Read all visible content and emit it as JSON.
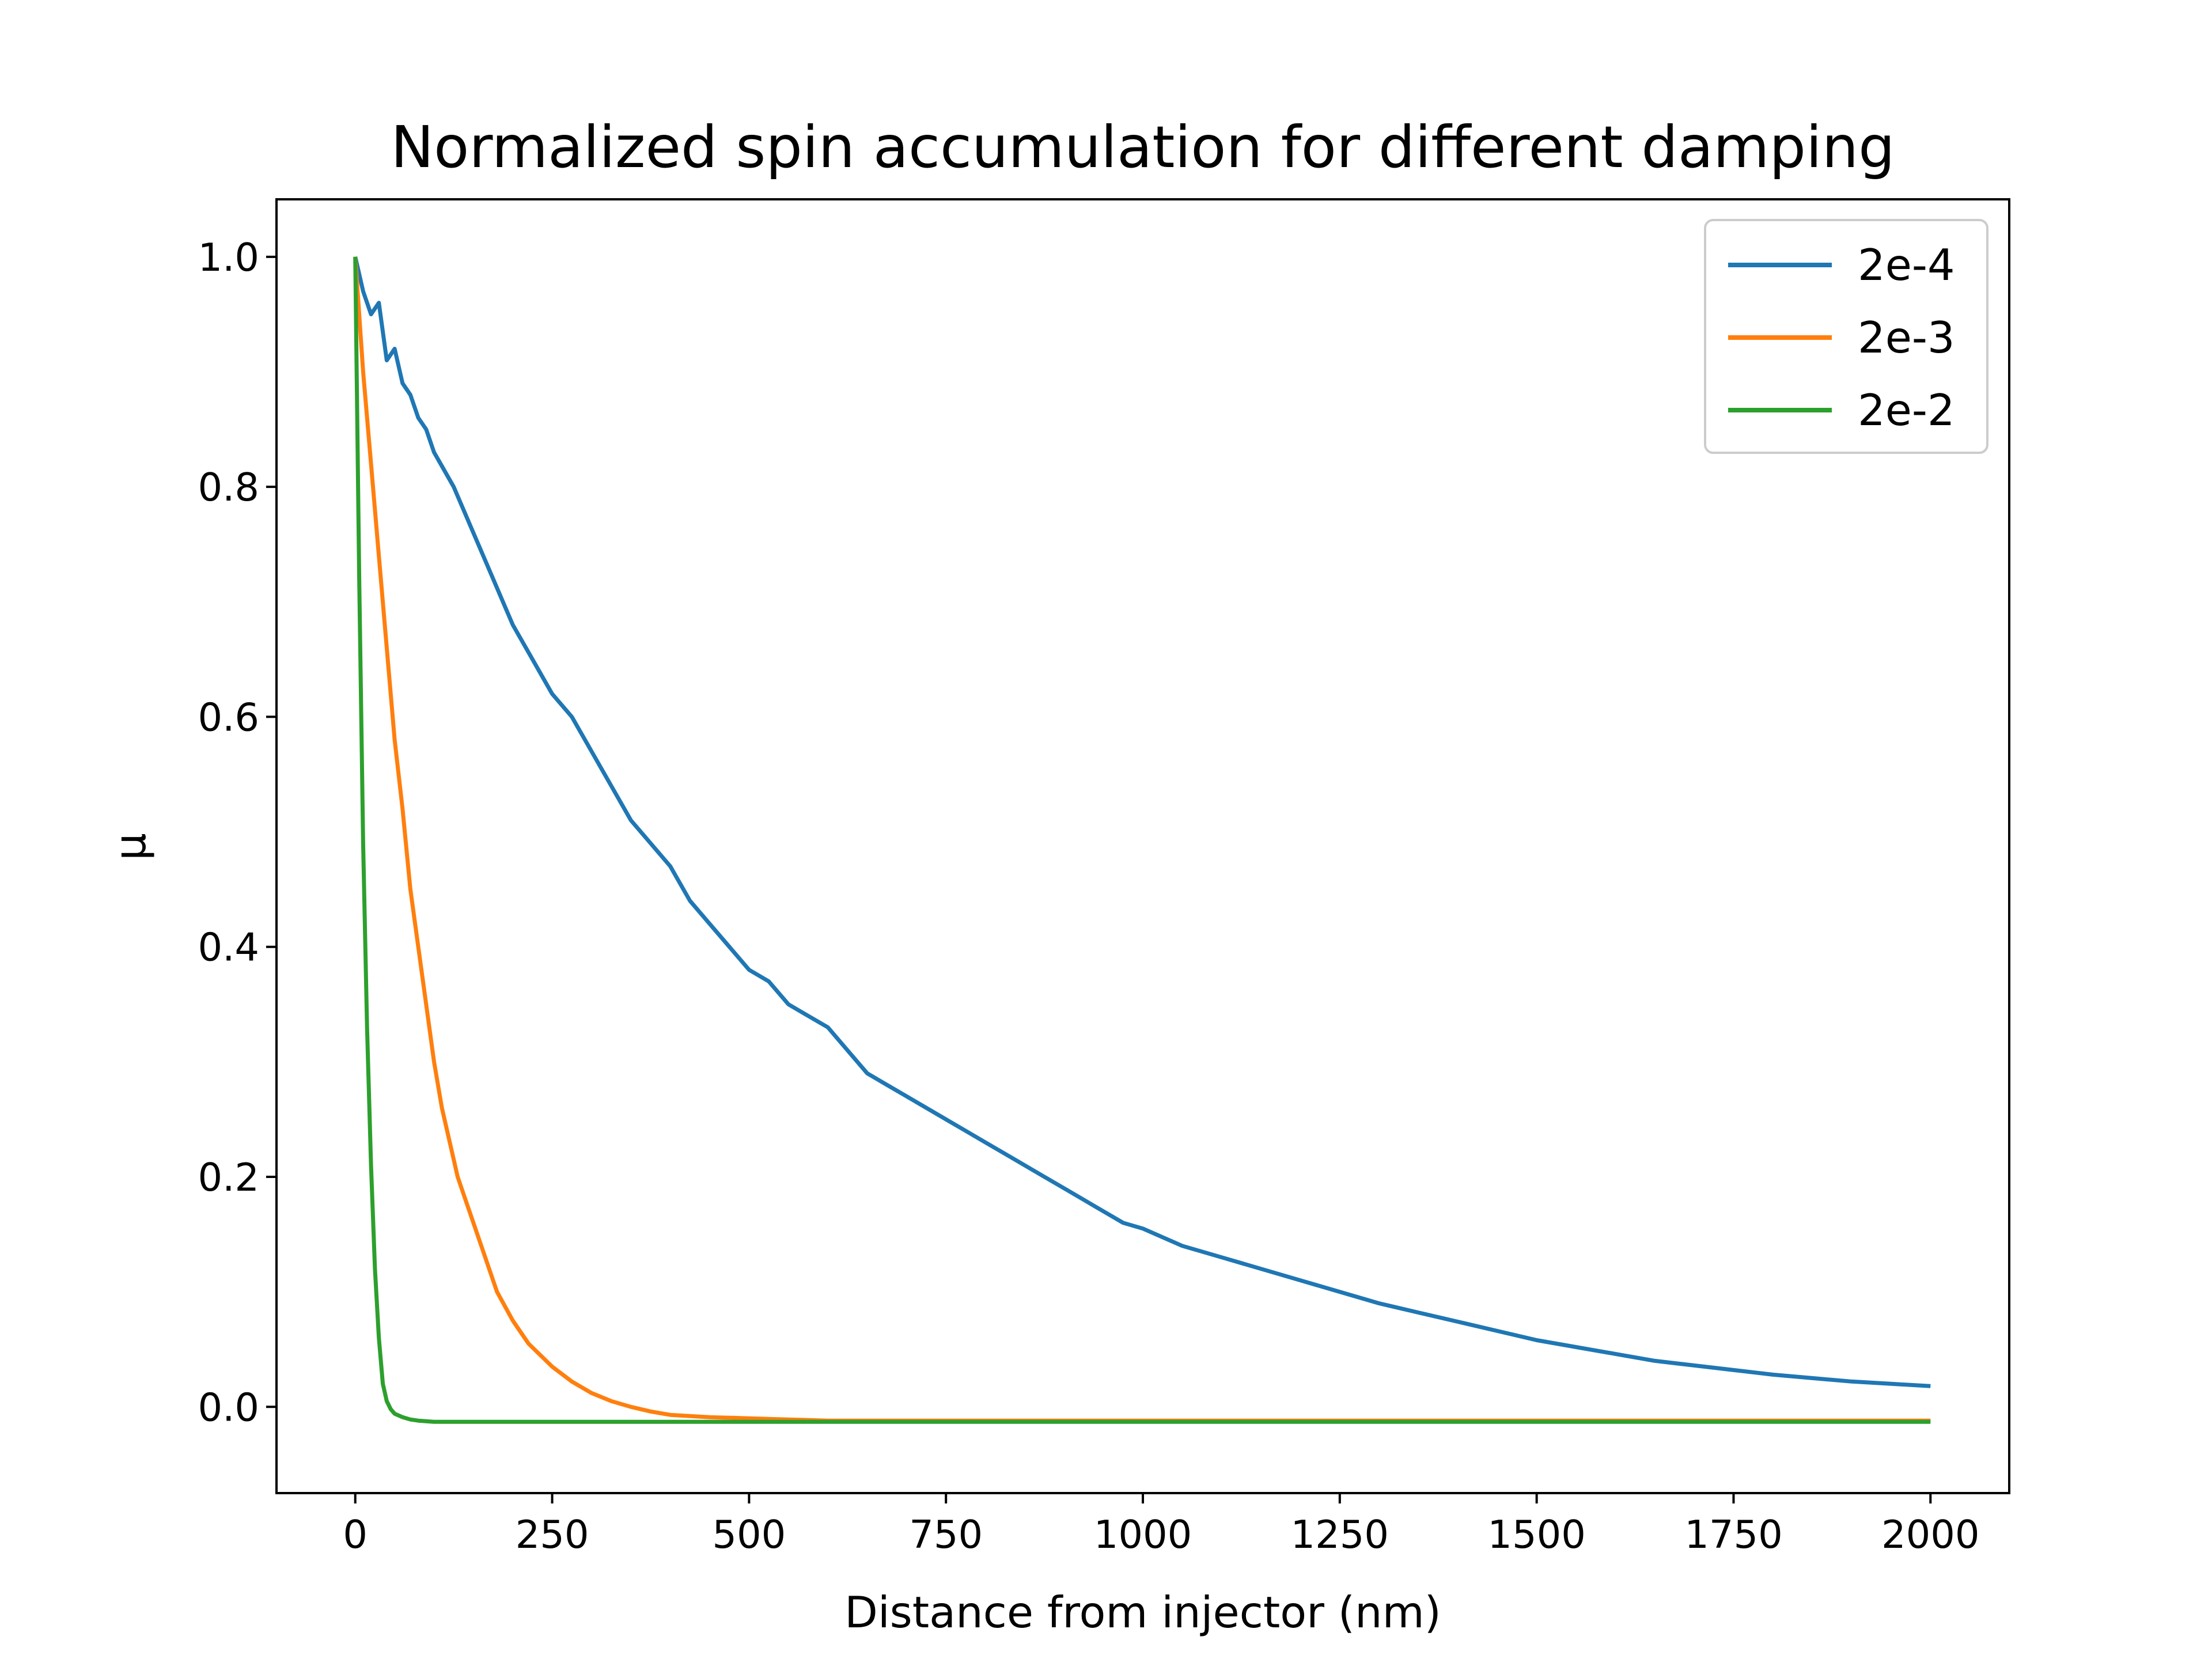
{
  "chart_data": {
    "type": "line",
    "title": "Normalized spin accumulation for different damping",
    "xlabel": "Distance from injector (nm)",
    "ylabel": "μ",
    "xlim": [
      -100,
      2100
    ],
    "ylim": [
      -0.075,
      1.05
    ],
    "x_ticks": [
      0,
      250,
      500,
      750,
      1000,
      1250,
      1500,
      1750,
      2000
    ],
    "x_tick_labels": [
      "0",
      "250",
      "500",
      "750",
      "1000",
      "1250",
      "1500",
      "1750",
      "2000"
    ],
    "y_ticks": [
      0.0,
      0.2,
      0.4,
      0.6,
      0.8,
      1.0
    ],
    "y_tick_labels": [
      "0.0",
      "0.2",
      "0.4",
      "0.6",
      "0.8",
      "1.0"
    ],
    "grid": false,
    "legend_position": "top-right",
    "series": [
      {
        "name": "2e-4",
        "color": "#1f77b4",
        "x": [
          0,
          10,
          20,
          30,
          40,
          50,
          60,
          70,
          80,
          90,
          100,
          125,
          150,
          175,
          200,
          225,
          250,
          275,
          300,
          325,
          350,
          375,
          400,
          425,
          450,
          475,
          500,
          525,
          550,
          575,
          600,
          625,
          650,
          675,
          700,
          725,
          750,
          775,
          800,
          825,
          850,
          875,
          900,
          925,
          950,
          975,
          1000,
          1050,
          1100,
          1150,
          1200,
          1250,
          1300,
          1350,
          1400,
          1450,
          1500,
          1550,
          1600,
          1650,
          1700,
          1750,
          1800,
          1850,
          1900,
          1950,
          2000
        ],
        "y": [
          1.0,
          0.97,
          0.95,
          0.96,
          0.91,
          0.92,
          0.89,
          0.88,
          0.86,
          0.85,
          0.83,
          0.8,
          0.76,
          0.72,
          0.68,
          0.65,
          0.62,
          0.6,
          0.57,
          0.54,
          0.51,
          0.49,
          0.47,
          0.44,
          0.42,
          0.4,
          0.38,
          0.37,
          0.35,
          0.34,
          0.33,
          0.31,
          0.29,
          0.28,
          0.27,
          0.26,
          0.25,
          0.24,
          0.23,
          0.22,
          0.21,
          0.2,
          0.19,
          0.18,
          0.17,
          0.16,
          0.155,
          0.14,
          0.13,
          0.12,
          0.11,
          0.1,
          0.09,
          0.082,
          0.074,
          0.066,
          0.058,
          0.052,
          0.046,
          0.04,
          0.036,
          0.032,
          0.028,
          0.025,
          0.022,
          0.02,
          0.018
        ]
      },
      {
        "name": "2e-3",
        "color": "#ff7f0e",
        "x": [
          0,
          10,
          20,
          30,
          40,
          50,
          60,
          70,
          80,
          90,
          100,
          110,
          120,
          130,
          140,
          150,
          160,
          180,
          200,
          220,
          250,
          275,
          300,
          325,
          350,
          375,
          400,
          450,
          500,
          550,
          600,
          700,
          800,
          900,
          1000,
          1100,
          1200,
          1300,
          1400,
          1500,
          1600,
          1700,
          1800,
          1900,
          2000
        ],
        "y": [
          1.0,
          0.9,
          0.82,
          0.74,
          0.66,
          0.58,
          0.52,
          0.45,
          0.4,
          0.35,
          0.3,
          0.26,
          0.23,
          0.2,
          0.18,
          0.16,
          0.14,
          0.1,
          0.075,
          0.055,
          0.035,
          0.022,
          0.012,
          0.005,
          0.0,
          -0.004,
          -0.007,
          -0.009,
          -0.01,
          -0.011,
          -0.012,
          -0.012,
          -0.012,
          -0.012,
          -0.012,
          -0.012,
          -0.012,
          -0.012,
          -0.012,
          -0.012,
          -0.012,
          -0.012,
          -0.012,
          -0.012,
          -0.012
        ]
      },
      {
        "name": "2e-2",
        "color": "#2ca02c",
        "x": [
          0,
          5,
          10,
          15,
          20,
          25,
          30,
          35,
          40,
          45,
          50,
          60,
          70,
          80,
          100,
          150,
          200,
          300,
          400,
          500,
          600,
          700,
          800,
          900,
          1000,
          1100,
          1200,
          1300,
          1400,
          1500,
          1600,
          1700,
          1800,
          1900,
          2000
        ],
        "y": [
          1.0,
          0.72,
          0.49,
          0.33,
          0.21,
          0.12,
          0.06,
          0.02,
          0.005,
          -0.002,
          -0.006,
          -0.009,
          -0.011,
          -0.012,
          -0.013,
          -0.013,
          -0.013,
          -0.013,
          -0.013,
          -0.013,
          -0.013,
          -0.013,
          -0.013,
          -0.013,
          -0.013,
          -0.013,
          -0.013,
          -0.013,
          -0.013,
          -0.013,
          -0.013,
          -0.013,
          -0.013,
          -0.013,
          -0.013
        ]
      }
    ]
  }
}
